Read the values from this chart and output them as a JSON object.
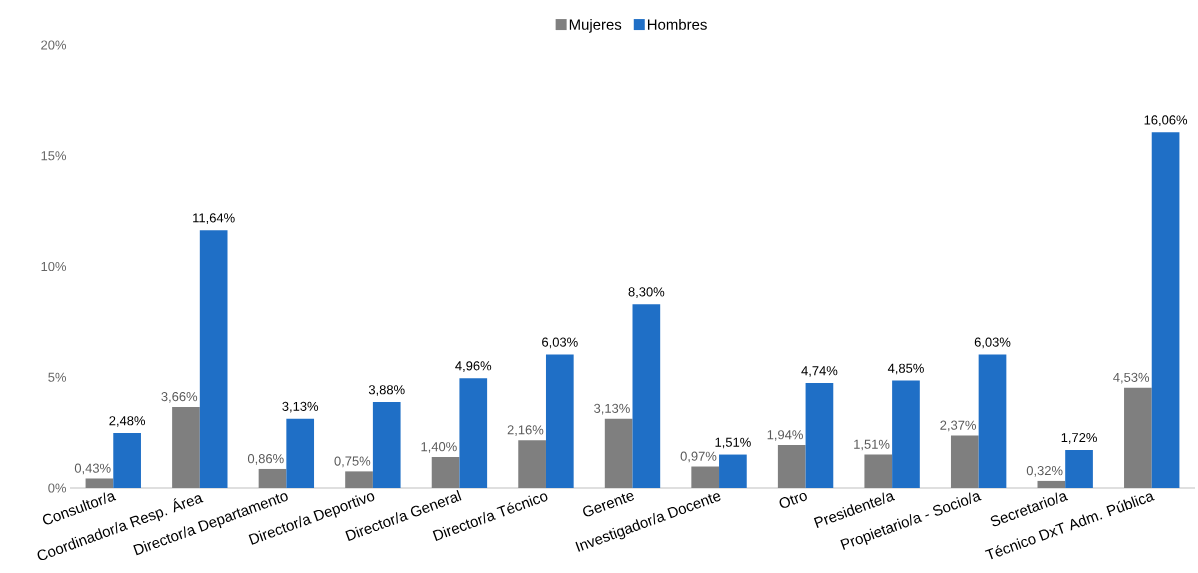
{
  "chart_data": {
    "type": "bar",
    "categories": [
      "Consultor/a",
      "Coordinador/a Resp. Área",
      "Director/a Departamento",
      "Director/a Deportivo",
      "Director/a General",
      "Director/a Técnico",
      "Gerente",
      "Investigador/a Docente",
      "Otro",
      "Presidente/a",
      "Propietario/a - Socio/a",
      "Secretario/a",
      "Técnico DxT Adm. Pública"
    ],
    "series": [
      {
        "name": "Mujeres",
        "color": "#7f7f7f",
        "values": [
          0.43,
          3.66,
          0.86,
          0.75,
          1.4,
          2.16,
          3.13,
          0.97,
          1.94,
          1.51,
          2.37,
          0.32,
          4.53
        ],
        "value_labels": [
          "0,43%",
          "3,66%",
          "0,86%",
          "0,75%",
          "1,40%",
          "2,16%",
          "3,13%",
          "0,97%",
          "1,94%",
          "1,51%",
          "2,37%",
          "0,32%",
          "4,53%"
        ]
      },
      {
        "name": "Hombres",
        "color": "#1f6fc6",
        "values": [
          2.48,
          11.64,
          3.13,
          3.88,
          4.96,
          6.03,
          8.3,
          1.51,
          4.74,
          4.85,
          6.03,
          1.72,
          16.06
        ],
        "value_labels": [
          "2,48%",
          "11,64%",
          "3,13%",
          "3,88%",
          "4,96%",
          "6,03%",
          "8,30%",
          "1,51%",
          "4,74%",
          "4,85%",
          "6,03%",
          "1,72%",
          "16,06%"
        ]
      }
    ],
    "ylim": [
      0,
      20
    ],
    "yticks": [
      {
        "value": 0,
        "label": "0%"
      },
      {
        "value": 5,
        "label": "5%"
      },
      {
        "value": 10,
        "label": "10%"
      },
      {
        "value": 15,
        "label": "15%"
      },
      {
        "value": 20,
        "label": "20%"
      }
    ],
    "legend": "top",
    "grid": false
  }
}
